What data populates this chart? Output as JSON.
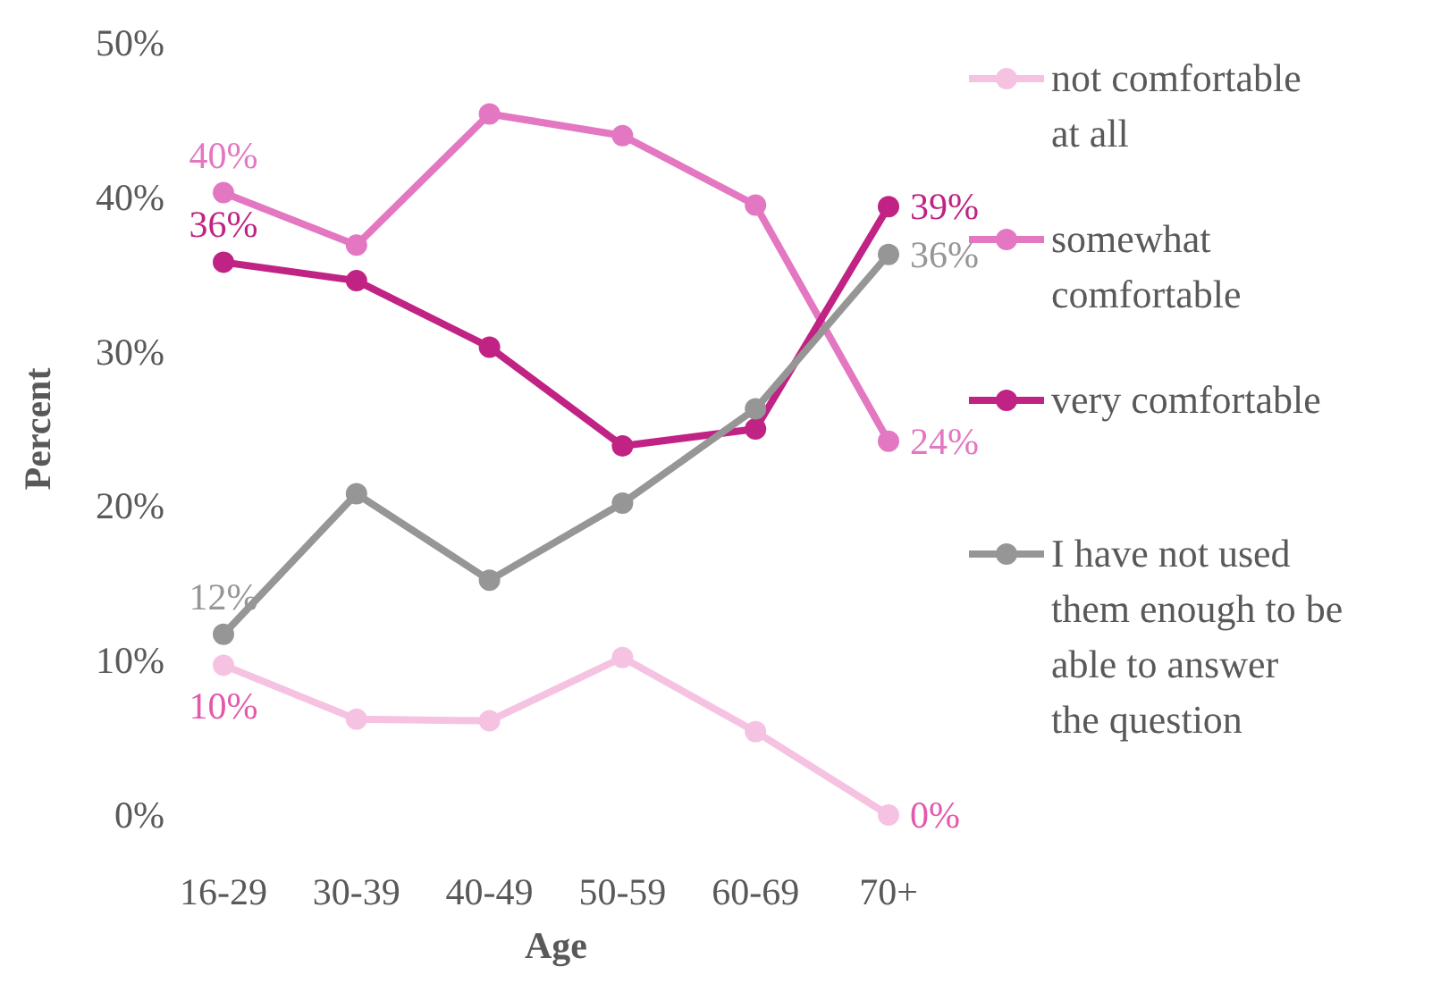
{
  "chart_data": {
    "type": "line",
    "xlabel": "Age",
    "ylabel": "Percent",
    "categories": [
      "16-29",
      "30-39",
      "40-49",
      "50-59",
      "60-69",
      "70+"
    ],
    "ylim": [
      0,
      50
    ],
    "yticks": [
      {
        "value": 0,
        "label": "0%"
      },
      {
        "value": 10,
        "label": "10%"
      },
      {
        "value": 20,
        "label": "20%"
      },
      {
        "value": 30,
        "label": "30%"
      },
      {
        "value": 40,
        "label": "40%"
      },
      {
        "value": 50,
        "label": "50%"
      }
    ],
    "grid": false,
    "legend": "right",
    "marker": "circle",
    "line_style": "solid",
    "series": [
      {
        "name": "not comfortable at all",
        "color": "#f5c3e1",
        "values": [
          9.7,
          6.2,
          6.1,
          10.2,
          5.4,
          0
        ],
        "value_labels": [
          "10%",
          null,
          null,
          null,
          null,
          "0%"
        ]
      },
      {
        "name": "somewhat comfortable",
        "color": "#e377c2",
        "values": [
          40.3,
          36.9,
          45.4,
          44.0,
          39.5,
          24.2
        ],
        "value_labels": [
          "40%",
          null,
          null,
          null,
          null,
          "24%"
        ]
      },
      {
        "name": "very comfortable",
        "color": "#c02383",
        "values": [
          35.8,
          34.6,
          30.3,
          23.9,
          25.0,
          39.4
        ],
        "value_labels": [
          "36%",
          null,
          null,
          null,
          null,
          "39%"
        ]
      },
      {
        "name": "I have not used them enough to be able to answer the question",
        "color": "#969696",
        "values": [
          11.7,
          20.8,
          15.2,
          20.2,
          26.3,
          36.3
        ],
        "value_labels": [
          "12%",
          null,
          null,
          null,
          null,
          "36%"
        ]
      }
    ]
  }
}
